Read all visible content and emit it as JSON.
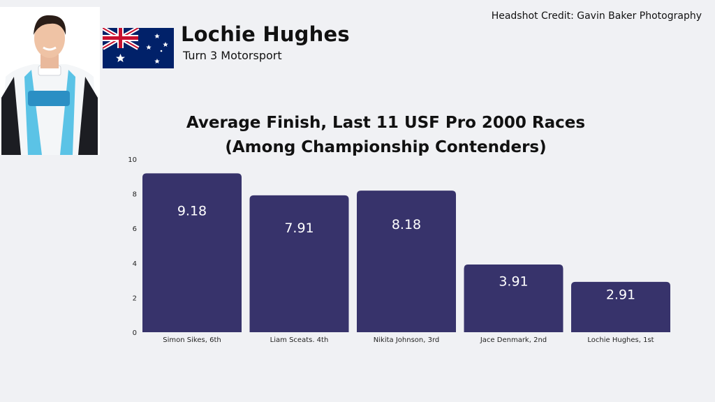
{
  "driver": {
    "name": "Lochie Hughes",
    "team": "Turn 3 Motorsport"
  },
  "credit": "Headshot Credit: Gavin Baker Photography",
  "icons": {
    "flag": "australia-flag-icon",
    "headshot": "driver-headshot"
  },
  "colors": {
    "bar": "#37336b",
    "background": "#f0f1f4",
    "bar_label": "#ffffff"
  },
  "chart_data": {
    "type": "bar",
    "title_line1": "Average Finish, Last 11 USF Pro 2000 Races",
    "title_line2": "(Among Championship Contenders)",
    "categories": [
      "Simon Sikes, 6th",
      "Liam Sceats. 4th",
      "Nikita Johnson, 3rd",
      "Jace Denmark, 2nd",
      "Lochie Hughes, 1st"
    ],
    "values": [
      9.18,
      7.91,
      8.18,
      3.91,
      2.91
    ],
    "value_labels": [
      "9.18",
      "7.91",
      "8.18",
      "3.91",
      "2.91"
    ],
    "yticks": [
      "0",
      "2",
      "4",
      "6",
      "8",
      "10"
    ],
    "ylim": [
      0,
      10
    ],
    "grid": false,
    "legend": "none"
  }
}
